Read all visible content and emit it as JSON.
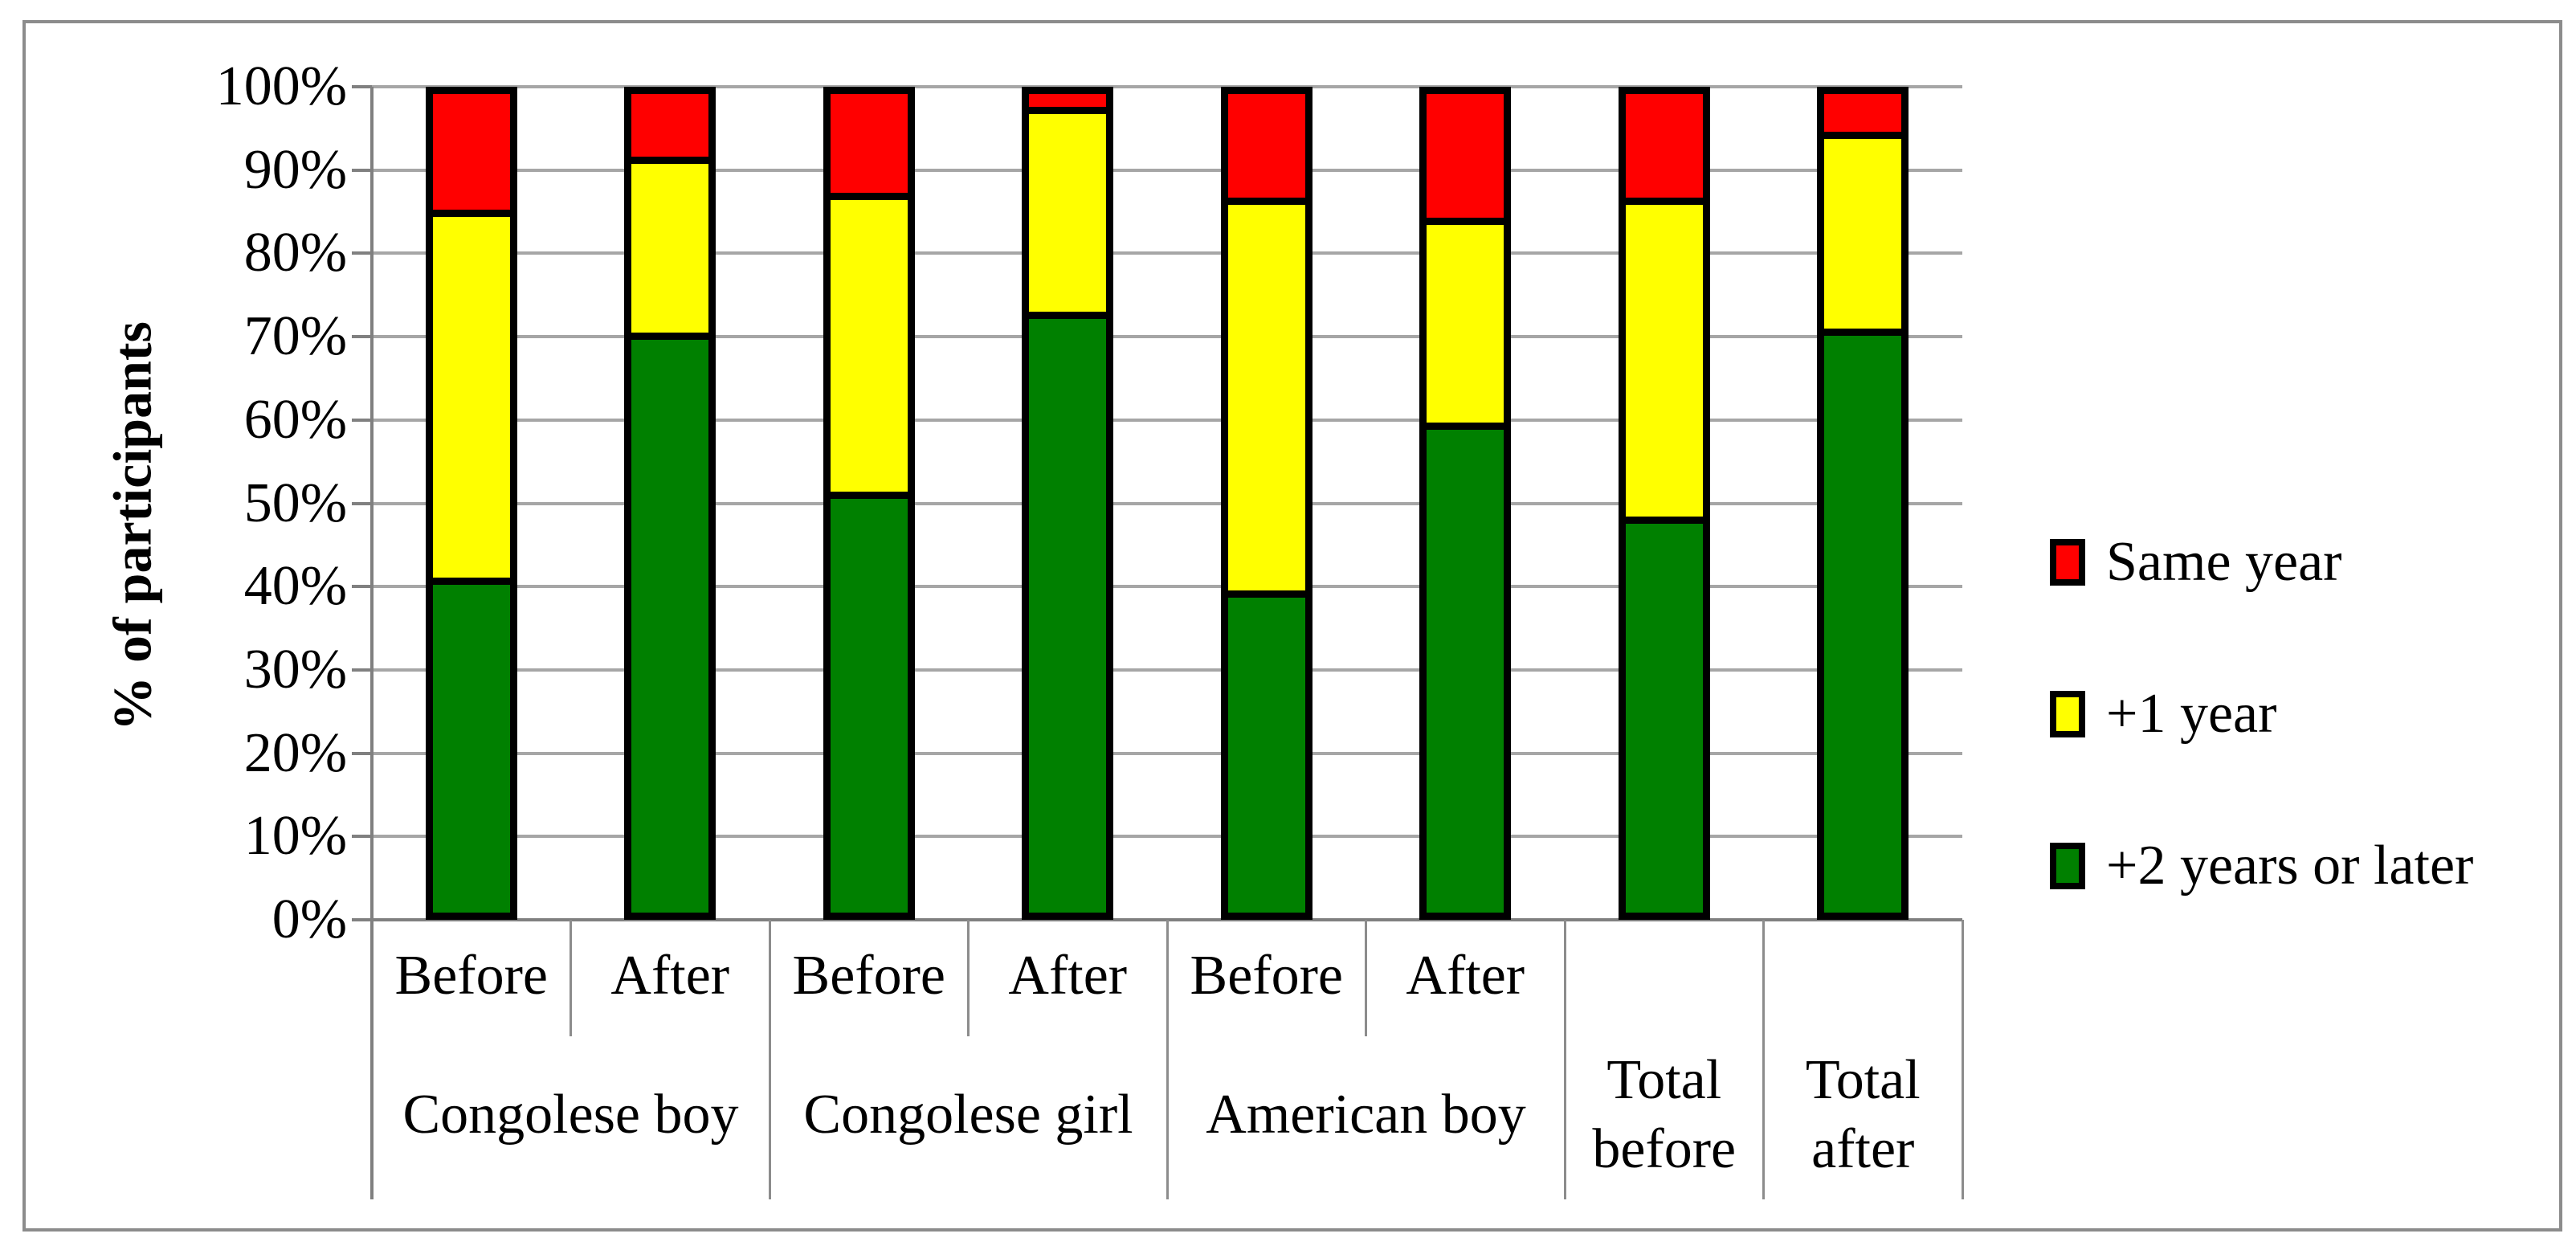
{
  "chart_data": {
    "type": "bar",
    "subtype": "stacked-percentage",
    "title": "",
    "xlabel": "",
    "ylabel": "% of participants",
    "y_axis": {
      "min": 0,
      "max": 100,
      "tick_step": 10,
      "tick_labels": [
        "0%",
        "10%",
        "20%",
        "30%",
        "40%",
        "50%",
        "60%",
        "70%",
        "80%",
        "90%",
        "100%"
      ]
    },
    "grid": true,
    "legend": {
      "position": "right",
      "entries": [
        {
          "label": "Same year",
          "color": "#ff0000"
        },
        {
          "label": "+1 year",
          "color": "#ffff00"
        },
        {
          "label": "+2 years or later",
          "color": "#008000"
        }
      ]
    },
    "stack_order_bottom_to_top": [
      "+2 years or later",
      "+1 year",
      "Same year"
    ],
    "groups": [
      {
        "label": "Congolese boy",
        "bars": [
          {
            "label": "Before",
            "values": {
              "+2 years or later": 40,
              "+1 year": 45,
              "Same year": 15
            }
          },
          {
            "label": "After",
            "values": {
              "+2 years or later": 70,
              "+1 year": 21.5,
              "Same year": 8.5
            }
          }
        ]
      },
      {
        "label": "Congolese girl",
        "bars": [
          {
            "label": "Before",
            "values": {
              "+2 years or later": 50.5,
              "+1 year": 36.5,
              "Same year": 13
            }
          },
          {
            "label": "After",
            "values": {
              "+2 years or later": 72.5,
              "+1 year": 25,
              "Same year": 2.5
            }
          }
        ]
      },
      {
        "label": "American boy",
        "bars": [
          {
            "label": "Before",
            "values": {
              "+2 years or later": 38.5,
              "+1 year": 48,
              "Same year": 13.5
            }
          },
          {
            "label": "After",
            "values": {
              "+2 years or later": 59,
              "+1 year": 25,
              "Same year": 16
            }
          }
        ]
      },
      {
        "label": "Total before",
        "bars": [
          {
            "label": "",
            "values": {
              "+2 years or later": 47.5,
              "+1 year": 39,
              "Same year": 13.5
            }
          }
        ]
      },
      {
        "label": "Total after",
        "bars": [
          {
            "label": "",
            "values": {
              "+2 years or later": 70.5,
              "+1 year": 24,
              "Same year": 5.5
            }
          }
        ]
      }
    ],
    "colors": {
      "same_year": "#ff0000",
      "plus_1_year": "#ffff00",
      "plus_2_years_or_later": "#008000",
      "gridline": "#a6a6a6",
      "axis": "#808080"
    }
  }
}
